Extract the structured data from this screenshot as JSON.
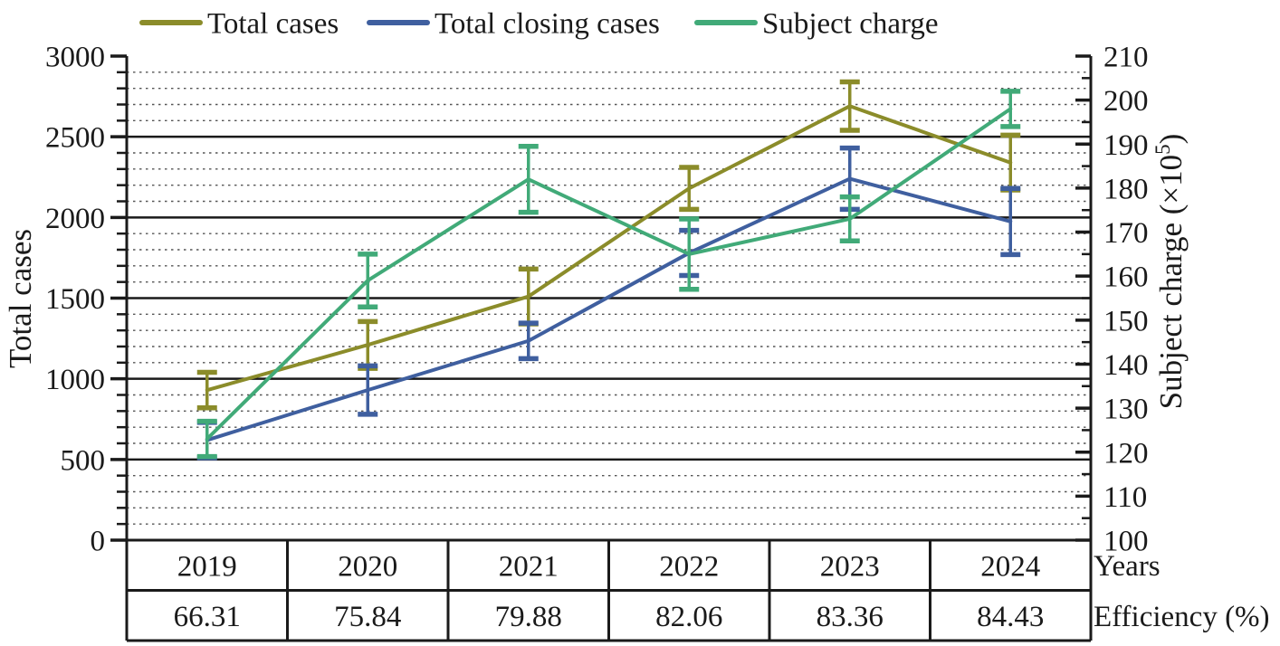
{
  "legend": {
    "items": [
      {
        "label": "Total cases",
        "color": "#8b8c2a"
      },
      {
        "label": "Total closing cases",
        "color": "#3f5f9f"
      },
      {
        "label": "Subject charge",
        "color": "#41aa78"
      }
    ]
  },
  "axes": {
    "left_title": "Total cases",
    "right_title_main": "Subject charge (×10",
    "right_title_sup": "5",
    "right_title_end": ")",
    "x_title": "Years",
    "efficiency_title": "Efficiency (%)"
  },
  "chart_data": {
    "type": "line",
    "title": "",
    "x": {
      "label": "Years",
      "categories": [
        "2019",
        "2020",
        "2021",
        "2022",
        "2023",
        "2024"
      ]
    },
    "left_axis": {
      "title": "Total cases",
      "min": 0,
      "max": 3000,
      "major_step": 500,
      "minor_step": 100
    },
    "right_axis": {
      "title": "Subject charge (×10⁵)",
      "min": 100,
      "max": 210,
      "major_step": 10,
      "minor_step": 5
    },
    "grid": {
      "major": "solid horizontal at left-axis multiples of 500",
      "minor": "dashed horizontal at left-axis multiples of 100"
    },
    "legend_position": "top",
    "series": [
      {
        "name": "Total cases",
        "axis": "left",
        "color": "#8b8c2a",
        "values": [
          930,
          1210,
          1510,
          2180,
          2690,
          2340
        ],
        "errors": [
          110,
          145,
          170,
          130,
          150,
          170
        ]
      },
      {
        "name": "Total closing cases",
        "axis": "left",
        "color": "#3f5f9f",
        "values": [
          620,
          930,
          1235,
          1780,
          2240,
          1975
        ],
        "errors": [
          110,
          150,
          110,
          140,
          190,
          205
        ]
      },
      {
        "name": "Subject charge",
        "axis": "right",
        "color": "#41aa78",
        "values": [
          123,
          159,
          182,
          165,
          173,
          198
        ],
        "errors": [
          4,
          6,
          7.5,
          8,
          5,
          4
        ]
      }
    ],
    "efficiency_row": {
      "label": "Efficiency (%)",
      "values": [
        "66.31",
        "75.84",
        "79.88",
        "82.06",
        "83.36",
        "84.43"
      ]
    }
  }
}
